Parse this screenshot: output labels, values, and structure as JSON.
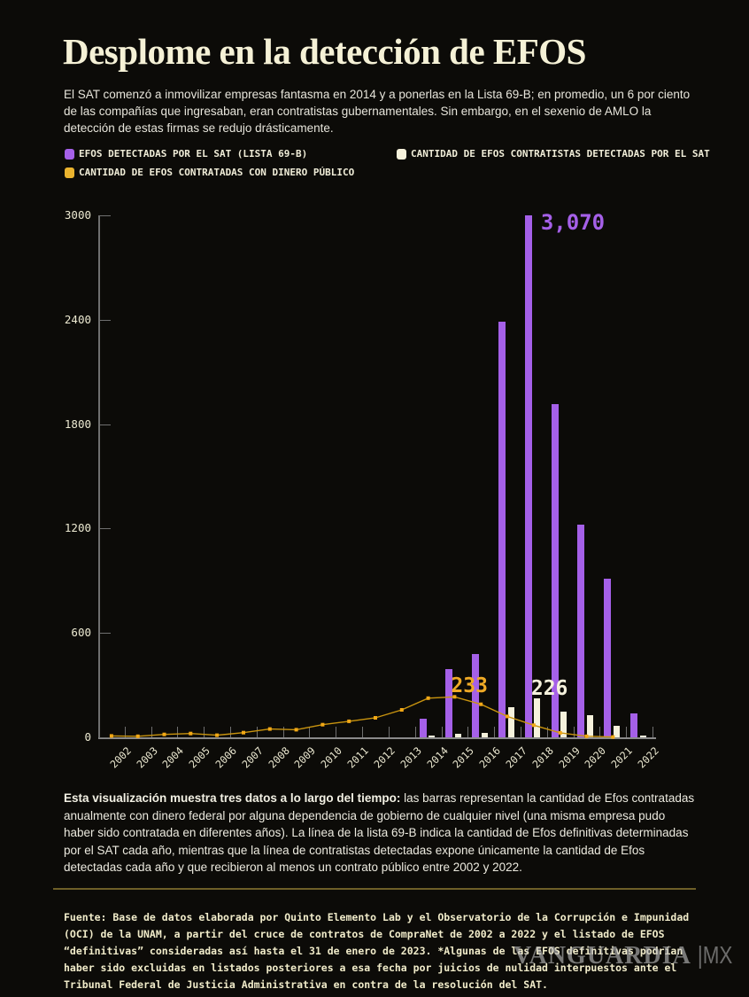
{
  "header": {
    "title": "Desplome en la detección de EFOS",
    "subtitle": "El SAT comenzó a inmovilizar empresas fantasma en 2014 y a ponerlas en la Lista 69-B; en promedio, un 6 por ciento de las compañías que ingresaban, eran contratistas gubernamentales. Sin embargo, en el sexenio de AMLO la detección de estas firmas se redujo drásticamente."
  },
  "legend": {
    "items": [
      {
        "label": "EFOS DETECTADAS POR EL SAT (LISTA 69-B)",
        "color": "#a560e8"
      },
      {
        "label": "CANTIDAD DE EFOS CONTRATISTAS DETECTADAS POR EL SAT",
        "color": "#f6f2dc"
      },
      {
        "label": "CANTIDAD DE EFOS CONTRATADAS CON DINERO PÚBLICO",
        "color": "#eab32e"
      }
    ]
  },
  "chart_data": {
    "type": "bar+line",
    "categories": [
      2002,
      2003,
      2004,
      2005,
      2006,
      2007,
      2008,
      2009,
      2010,
      2011,
      2012,
      2013,
      2014,
      2015,
      2016,
      2017,
      2018,
      2019,
      2020,
      2021,
      2022
    ],
    "ylim": [
      0,
      3000
    ],
    "yticks": [
      0,
      600,
      1200,
      1800,
      2400,
      3000
    ],
    "grid": false,
    "legend_position": "top",
    "series": [
      {
        "name": "EFOS detectadas por el SAT (Lista 69-B)",
        "type": "bar",
        "color": "#a560e8",
        "values": [
          0,
          0,
          0,
          0,
          0,
          0,
          0,
          0,
          0,
          0,
          0,
          0,
          105,
          390,
          480,
          2390,
          3070,
          1915,
          1220,
          910,
          135
        ]
      },
      {
        "name": "Cantidad de EFOS contratistas detectadas por el SAT",
        "type": "bar",
        "color": "#f6f2dc",
        "values": [
          0,
          0,
          0,
          0,
          0,
          0,
          0,
          0,
          0,
          0,
          0,
          0,
          8,
          20,
          25,
          175,
          226,
          150,
          125,
          65,
          8
        ]
      },
      {
        "name": "Cantidad de EFOS contratadas con dinero público",
        "type": "line",
        "color": "#c9940f",
        "marker_color": "#f2a816",
        "values": [
          8,
          6,
          17,
          22,
          12,
          27,
          48,
          44,
          73,
          92,
          112,
          158,
          225,
          233,
          190,
          120,
          70,
          26,
          6,
          2,
          null
        ]
      }
    ],
    "annotations": [
      {
        "text": "3,070",
        "year": 2018,
        "color": "#a560e8"
      },
      {
        "text": "233",
        "year": 2015,
        "color": "#efaa26"
      },
      {
        "text": "226",
        "year": 2018,
        "color": "#f5f1dc"
      }
    ]
  },
  "footer": {
    "note_bold": "Esta visualización muestra tres datos a lo largo del tiempo:",
    "note_rest": "las barras representan la cantidad de Efos contratadas anualmente con dinero federal por alguna dependencia de gobierno de cualquier nivel (una misma empresa pudo haber sido contratada en diferentes años). La línea de la lista 69-B indica la cantidad de Efos definitivas determinadas por el SAT cada año, mientras que la línea de contratistas detectadas expone únicamente la cantidad de Efos detectadas cada año y que recibieron al menos un contrato público entre 2002 y 2022.",
    "source": "Fuente: Base de datos elaborada por Quinto Elemento Lab y el Observatorio de la Corrupción e Impunidad\n(OCI) de la UNAM, a partir del cruce de contratos de CompraNet de 2002 a 2022 y el listado de EFOS\n“definitivas” consideradas así hasta el 31 de enero de 2023. *Algunas de las EFOS definitivas podrían\nhaber sido excluidas en listados posteriores a esa fecha por juicios de nulidad interpuestos ante el\nTribunal Federal de Justicia Administrativa en contra de la resolución del SAT.",
    "watermark": {
      "name": "VANGUARDIA",
      "suffix": "|MX"
    }
  }
}
